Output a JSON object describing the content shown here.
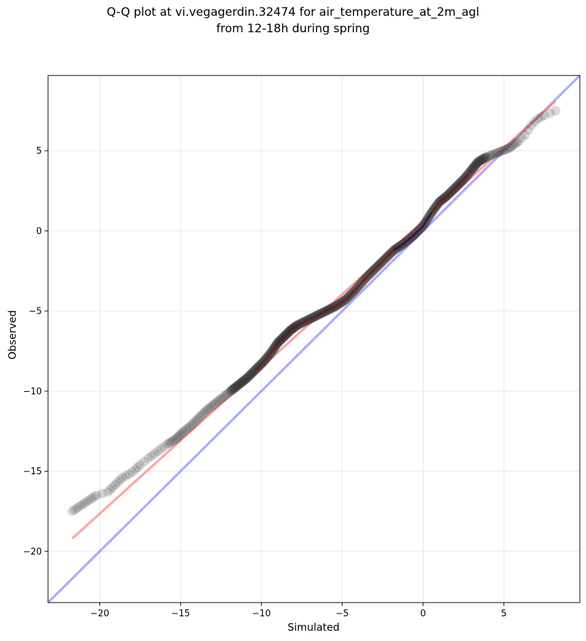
{
  "chart_data": {
    "type": "scatter",
    "title_line1": "Q-Q plot at vi.vegagerdin.32474 for air_temperature_at_2m_agl",
    "title_line2": "from 12-18h during spring",
    "xlabel": "Simulated",
    "ylabel": "Observed",
    "xlim": [
      -23.2,
      9.7
    ],
    "ylim": [
      -23.2,
      9.7
    ],
    "xticks": [
      -20,
      -15,
      -10,
      -5,
      0,
      5
    ],
    "yticks": [
      -20,
      -15,
      -10,
      -5,
      0,
      5
    ],
    "grid": true,
    "colors": {
      "points": "#333333",
      "fit_line": "#ff7f7f",
      "identity_line": "#8080ff",
      "center_line": "#000080"
    },
    "quantiles": {
      "x": [
        -21.7,
        -21.4,
        -21.1,
        -20.8,
        -20.5,
        -20.2,
        -19.5,
        -19.2,
        -18.9,
        -18.6,
        -18.2,
        -17.8,
        -17.5,
        -17.0,
        -16.6,
        -16.2,
        -15.8,
        -15.3,
        -14.9,
        -14.4,
        -13.9,
        -13.4,
        -12.9,
        -12.4,
        -11.9,
        -11.4,
        -10.9,
        -10.4,
        -9.9,
        -9.4,
        -9.0,
        -8.6,
        -8.2,
        -7.8,
        -7.2,
        -6.6,
        -6.0,
        -5.4,
        -4.8,
        -4.2,
        -3.6,
        -3.0,
        -2.4,
        -1.8,
        -1.2,
        -0.6,
        0.0,
        0.5,
        1.0,
        1.5,
        2.0,
        2.5,
        3.0,
        3.4,
        3.9,
        4.4,
        4.9,
        5.4,
        5.9,
        6.3,
        6.7,
        7.1,
        7.5,
        8.2
      ],
      "y": [
        -17.5,
        -17.3,
        -17.1,
        -16.9,
        -16.7,
        -16.5,
        -16.3,
        -16.0,
        -15.7,
        -15.4,
        -15.2,
        -14.9,
        -14.6,
        -14.2,
        -13.9,
        -13.6,
        -13.3,
        -13.0,
        -12.6,
        -12.2,
        -11.7,
        -11.2,
        -10.8,
        -10.4,
        -10.0,
        -9.6,
        -9.2,
        -8.7,
        -8.2,
        -7.6,
        -7.0,
        -6.6,
        -6.2,
        -5.9,
        -5.6,
        -5.3,
        -5.0,
        -4.7,
        -4.3,
        -3.7,
        -3.0,
        -2.4,
        -1.8,
        -1.2,
        -0.8,
        -0.3,
        0.3,
        1.1,
        1.8,
        2.2,
        2.7,
        3.2,
        3.8,
        4.3,
        4.6,
        4.8,
        5.0,
        5.2,
        5.6,
        6.0,
        6.6,
        7.0,
        7.2,
        7.5
      ]
    },
    "fit_line": {
      "x": [
        -21.7,
        8.2
      ],
      "y": [
        -19.2,
        8.1
      ]
    },
    "identity_line": {
      "x": [
        -23.2,
        9.7
      ],
      "y": [
        -23.2,
        9.7
      ]
    }
  }
}
